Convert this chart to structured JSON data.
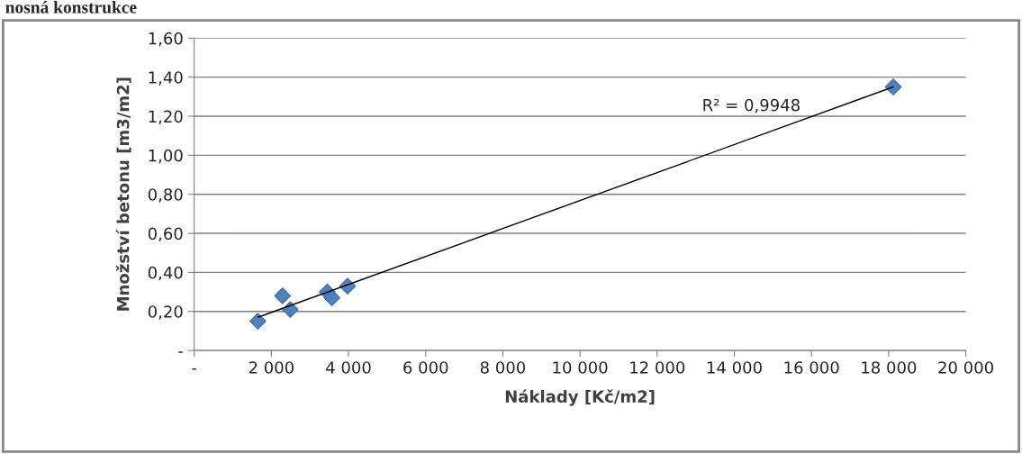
{
  "chart_data": {
    "type": "scatter",
    "title": "nosná konstrukce",
    "xlabel": "Náklady [Kč/m2]",
    "ylabel": "Množství betonu [m3/m2]",
    "series": [
      {
        "color": "#4f81bd",
        "marker": "diamond",
        "x": [
          1650,
          2290,
          2490,
          3450,
          3570,
          3975,
          18120
        ],
        "values": [
          0.15,
          0.28,
          0.21,
          0.3,
          0.27,
          0.33,
          1.35
        ]
      },
      {
        "type": "line",
        "color": "#000000",
        "marker": "none",
        "line_style": "solid",
        "x": [
          1650,
          18120
        ],
        "values": [
          0.17,
          1.35
        ]
      }
    ],
    "annotations": [
      "R² = 0,9948"
    ],
    "xlim": [
      0,
      20000
    ],
    "ylim": [
      0,
      1.6
    ],
    "xticks": [
      {
        "value": 0,
        "label": "-"
      },
      {
        "value": 2000,
        "label": "2 000"
      },
      {
        "value": 4000,
        "label": "4 000"
      },
      {
        "value": 6000,
        "label": "6 000"
      },
      {
        "value": 8000,
        "label": "8 000"
      },
      {
        "value": 10000,
        "label": "10 000"
      },
      {
        "value": 12000,
        "label": "12 000"
      },
      {
        "value": 14000,
        "label": "14 000"
      },
      {
        "value": 16000,
        "label": "16 000"
      },
      {
        "value": 18000,
        "label": "18 000"
      },
      {
        "value": 20000,
        "label": "20 000"
      }
    ],
    "yticks": [
      {
        "value": 0,
        "label": "-"
      },
      {
        "value": 0.2,
        "label": "0,20"
      },
      {
        "value": 0.4,
        "label": "0,40"
      },
      {
        "value": 0.6,
        "label": "0,60"
      },
      {
        "value": 0.8,
        "label": "0,80"
      },
      {
        "value": 1.0,
        "label": "1,00"
      },
      {
        "value": 1.2,
        "label": "1,20"
      },
      {
        "value": 1.4,
        "label": "1,40"
      },
      {
        "value": 1.6,
        "label": "1,60"
      }
    ],
    "grid": "y",
    "legend": false
  }
}
